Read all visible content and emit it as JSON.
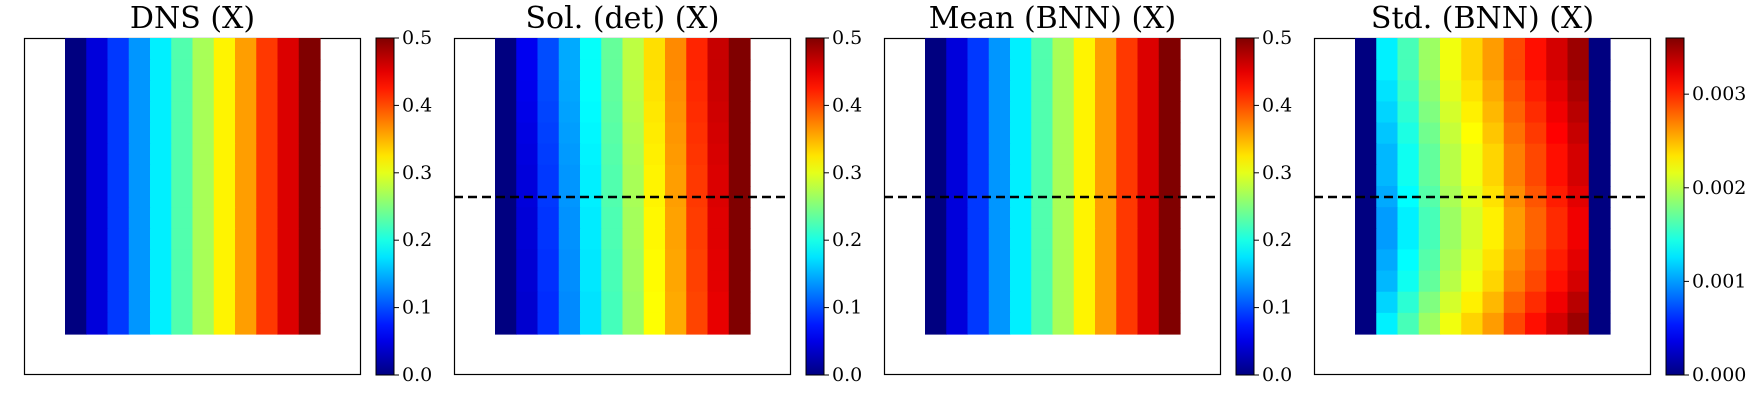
{
  "chart_data": [
    {
      "type": "heatmap",
      "title": "DNS (X)",
      "dashed_line": false,
      "colormap": "jet",
      "colorbar": {
        "min": 0.0,
        "max": 0.5,
        "ticks": [
          0.0,
          0.1,
          0.2,
          0.3,
          0.4,
          0.5
        ],
        "tick_labels": [
          "0.0",
          "0.1",
          "0.2",
          "0.3",
          "0.4",
          "0.5"
        ]
      },
      "columns": [
        0.0,
        0.045,
        0.09,
        0.136,
        0.18,
        0.227,
        0.27,
        0.318,
        0.36,
        0.41,
        0.455,
        0.5
      ],
      "row_variation": [
        0,
        0,
        0,
        0,
        0,
        0,
        0,
        0,
        0,
        0,
        0,
        0,
        0,
        0
      ]
    },
    {
      "type": "heatmap",
      "title": "Sol. (det) (X)",
      "dashed_line": true,
      "colormap": "jet",
      "colorbar": {
        "min": 0.0,
        "max": 0.5,
        "ticks": [
          0.0,
          0.1,
          0.2,
          0.3,
          0.4,
          0.5
        ],
        "tick_labels": [
          "0.0",
          "0.1",
          "0.2",
          "0.3",
          "0.4",
          "0.5"
        ]
      },
      "columns": [
        0.0,
        0.045,
        0.09,
        0.136,
        0.18,
        0.227,
        0.27,
        0.318,
        0.36,
        0.41,
        0.455,
        0.5
      ],
      "row_variation": [
        0.01,
        0.01,
        0.008,
        0.006,
        0.004,
        0.002,
        0,
        0,
        -0.002,
        -0.002,
        -0.004,
        -0.004,
        -0.006,
        -0.006
      ]
    },
    {
      "type": "heatmap",
      "title": "Mean (BNN) (X)",
      "dashed_line": true,
      "colormap": "jet",
      "colorbar": {
        "min": 0.0,
        "max": 0.5,
        "ticks": [
          0.0,
          0.1,
          0.2,
          0.3,
          0.4,
          0.5
        ],
        "tick_labels": [
          "0.0",
          "0.1",
          "0.2",
          "0.3",
          "0.4",
          "0.5"
        ]
      },
      "columns": [
        0.0,
        0.045,
        0.09,
        0.136,
        0.18,
        0.227,
        0.27,
        0.318,
        0.36,
        0.41,
        0.455,
        0.5
      ],
      "row_variation": [
        0,
        0,
        0,
        0,
        0,
        0,
        0,
        0,
        0,
        0,
        0,
        0,
        0,
        0
      ]
    },
    {
      "type": "heatmap",
      "title": "Std. (BNN) (X)",
      "dashed_line": true,
      "colormap": "jet",
      "colorbar": {
        "min": 0.0,
        "max": 0.0036,
        "ticks": [
          0.0,
          0.001,
          0.002,
          0.003
        ],
        "tick_labels": [
          "0.000",
          "0.001",
          "0.002",
          "0.003"
        ]
      },
      "columns": [
        0.0,
        0.0011,
        0.0014,
        0.0017,
        0.002,
        0.0022,
        0.0024,
        0.0027,
        0.0029,
        0.0031,
        0.0033,
        0.0
      ],
      "row_variation": [
        0.0002,
        0.0002,
        0.00015,
        0.0001,
        5e-05,
        0,
        0,
        -5e-05,
        -0.0001,
        -0.0001,
        -5e-05,
        0,
        0.0001,
        0.0002
      ]
    }
  ]
}
